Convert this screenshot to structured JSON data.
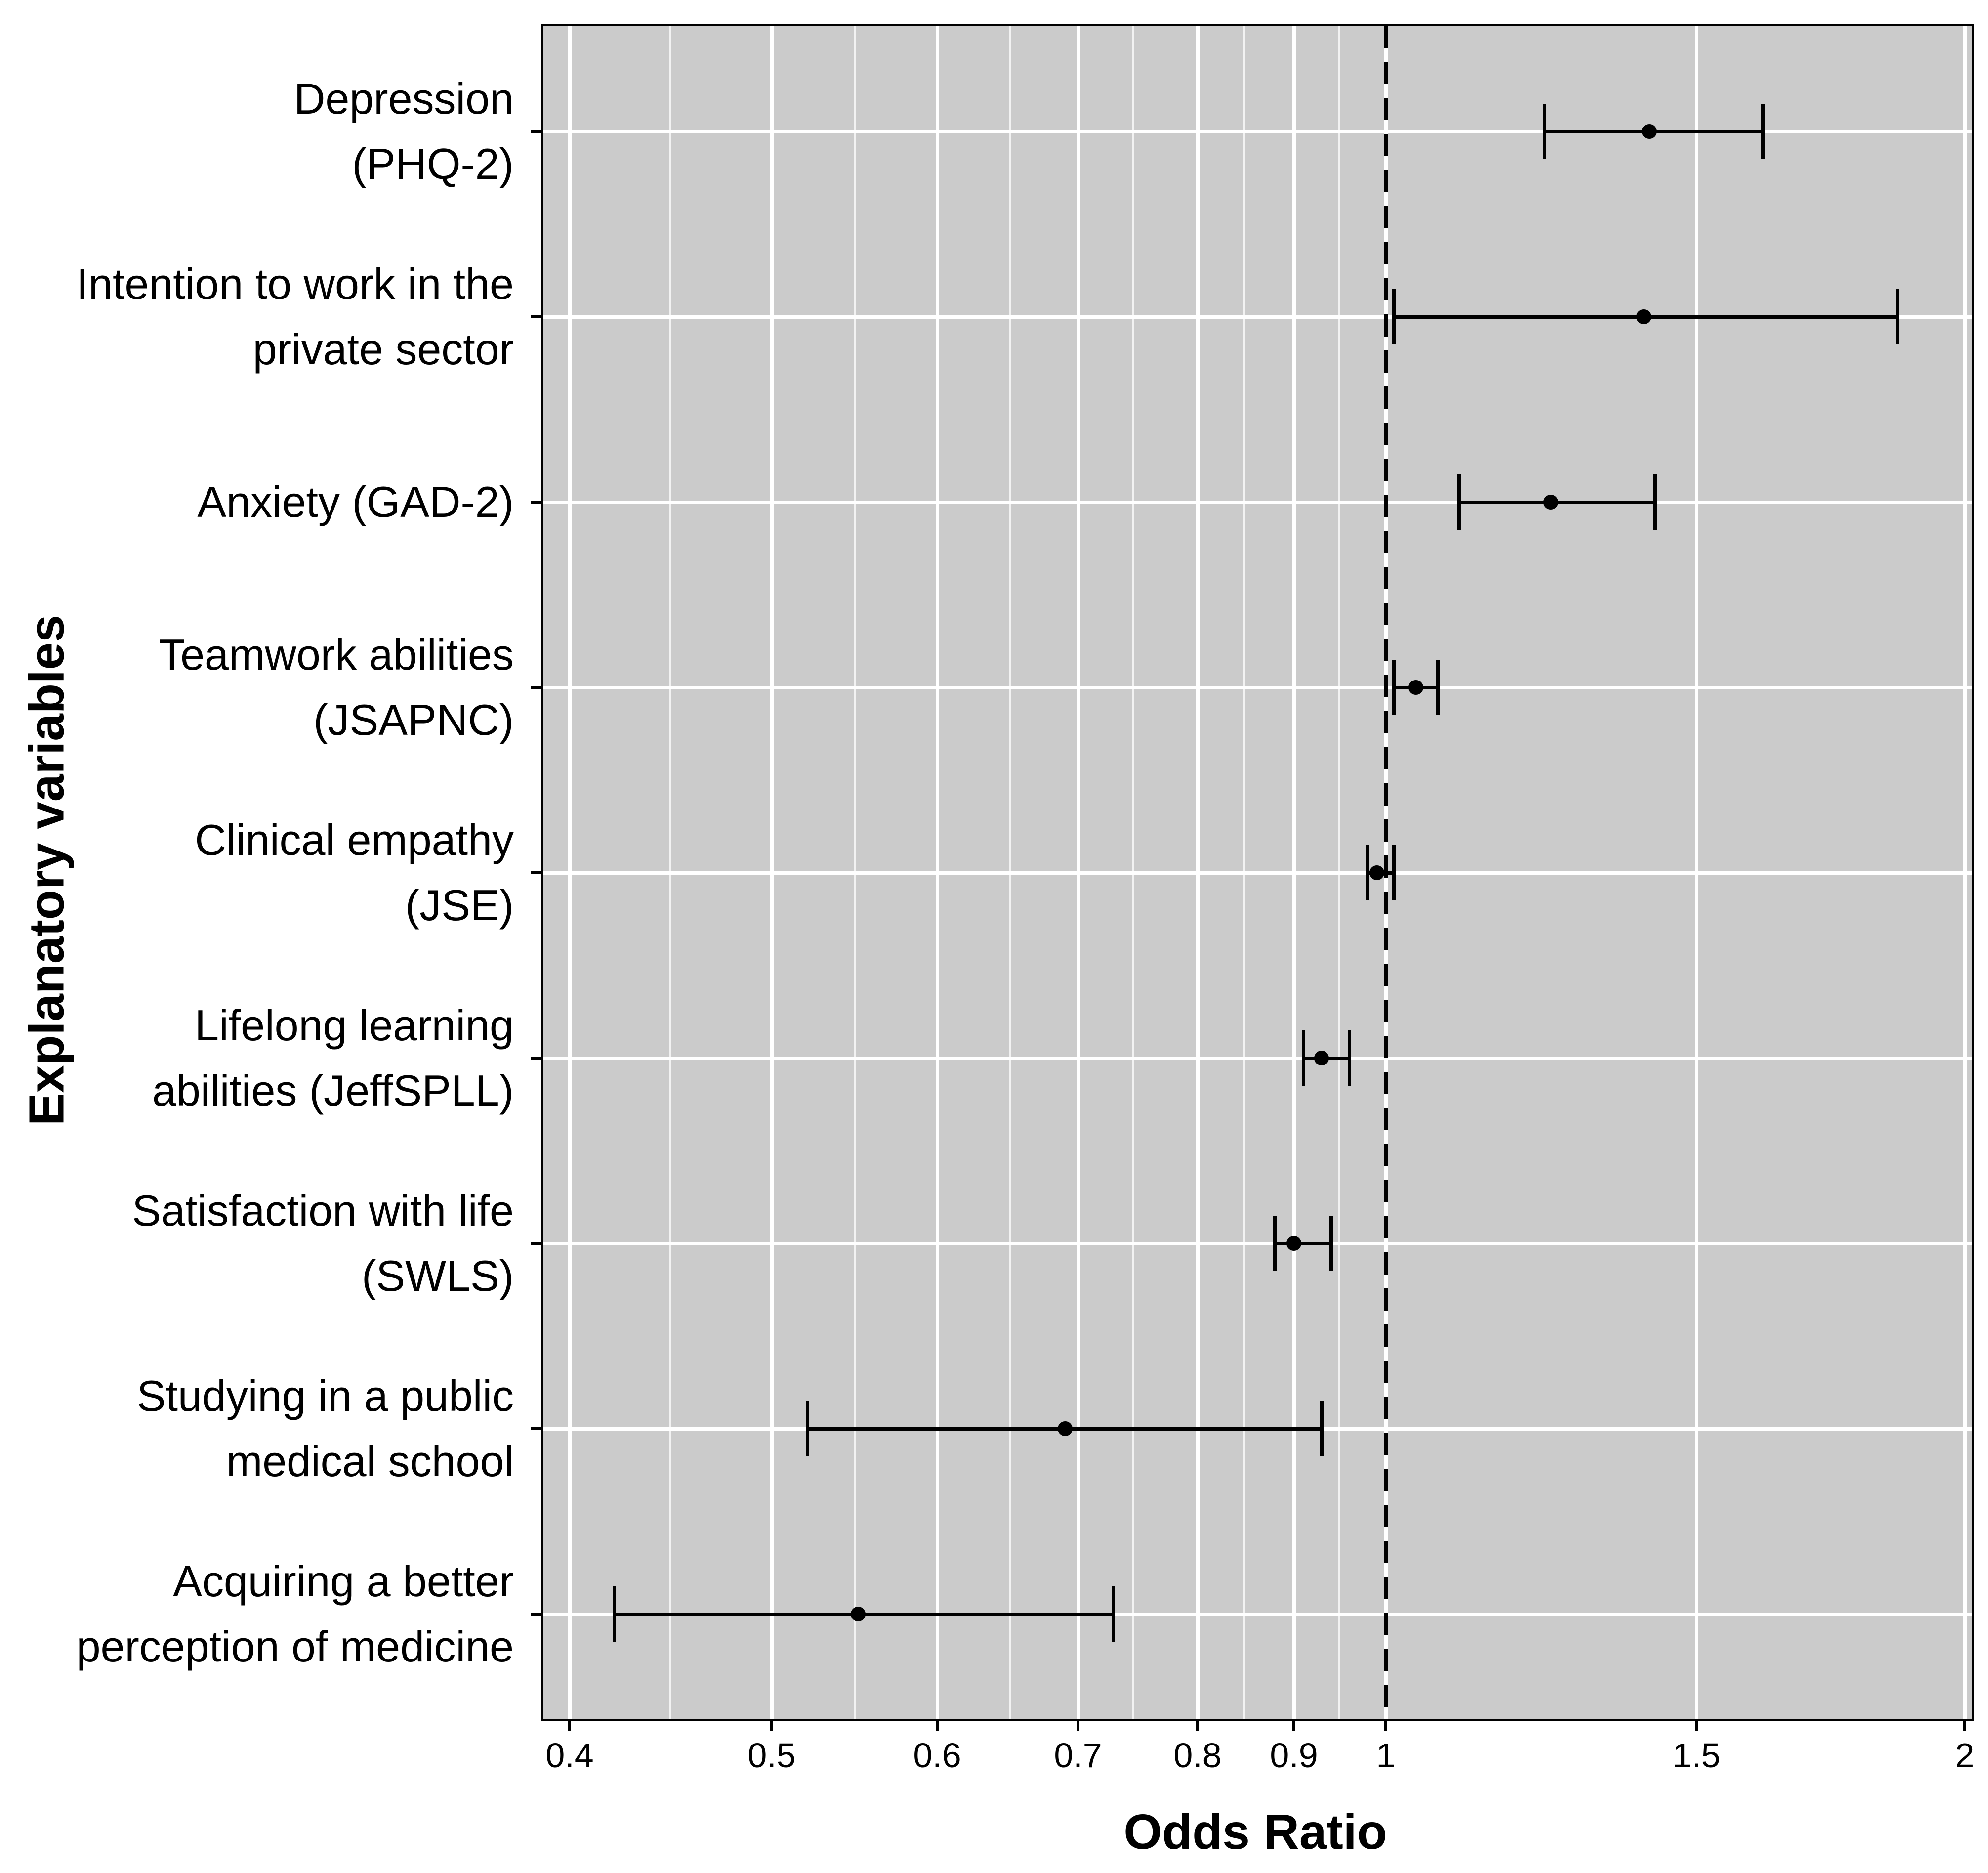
{
  "figure": {
    "background": "#ffffff",
    "panel_background": "#cbcbcb",
    "gridline_color": "#ffffff",
    "data_color": "#000000"
  },
  "chart_data": {
    "type": "scatter",
    "variant": "forest-plot",
    "title": "",
    "xlabel": "Odds Ratio",
    "ylabel": "Explanatory variables",
    "x_scale": "log",
    "xlim": [
      0.38,
      2.01
    ],
    "grid": "on",
    "reference_line_x": 1,
    "reference_line_style": "dashed",
    "x_ticks": [
      0.4,
      0.5,
      0.6,
      0.7,
      0.8,
      0.9,
      1,
      1.5,
      2
    ],
    "x_tick_labels": [
      "0.4",
      "0.5",
      "0.6",
      "0.7",
      "0.8",
      "0.9",
      "1",
      "1.5",
      "2"
    ],
    "x_minor_ticks": [
      0.447,
      0.548,
      0.648,
      0.748,
      0.849,
      0.949
    ],
    "categories": [
      "Depression (PHQ-2)",
      "Intention to work in the private sector",
      "Anxiety (GAD-2)",
      "Teamwork abilities (JSAPNC)",
      "Clinical empathy (JSE)",
      "Lifelong learning abilities (JeffSPLL)",
      "Satisfaction with life (SWLS)",
      "Studying in a public medical school",
      "Acquiring a better perception of medicine"
    ],
    "rows": [
      {
        "label_lines": [
          "Depression",
          "(PHQ-2)"
        ],
        "odds_ratio": 1.41,
        "ci_low": 1.23,
        "ci_high": 1.61
      },
      {
        "label_lines": [
          "Intention to work in the",
          "private sector"
        ],
        "odds_ratio": 1.4,
        "ci_low": 1.01,
        "ci_high": 1.86
      },
      {
        "label_lines": [
          "Anxiety (GAD-2)"
        ],
        "odds_ratio": 1.24,
        "ci_low": 1.1,
        "ci_high": 1.42
      },
      {
        "label_lines": [
          "Teamwork abilities",
          "(JSAPNC)"
        ],
        "odds_ratio": 1.04,
        "ci_low": 1.01,
        "ci_high": 1.07
      },
      {
        "label_lines": [
          "Clinical empathy",
          "(JSE)"
        ],
        "odds_ratio": 0.99,
        "ci_low": 0.98,
        "ci_high": 1.01
      },
      {
        "label_lines": [
          "Lifelong learning",
          "abilities (JeffSPLL)"
        ],
        "odds_ratio": 0.93,
        "ci_low": 0.91,
        "ci_high": 0.96
      },
      {
        "label_lines": [
          "Satisfaction with life",
          "(SWLS)"
        ],
        "odds_ratio": 0.9,
        "ci_low": 0.88,
        "ci_high": 0.94
      },
      {
        "label_lines": [
          "Studying in a public",
          "medical school"
        ],
        "odds_ratio": 0.69,
        "ci_low": 0.52,
        "ci_high": 0.93
      },
      {
        "label_lines": [
          "Acquiring a better",
          "perception of medicine"
        ],
        "odds_ratio": 0.55,
        "ci_low": 0.42,
        "ci_high": 0.73
      }
    ]
  }
}
